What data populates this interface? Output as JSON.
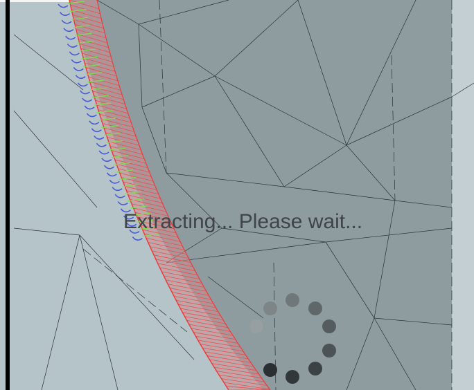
{
  "status": {
    "message": "Extracting... Please wait..."
  }
}
